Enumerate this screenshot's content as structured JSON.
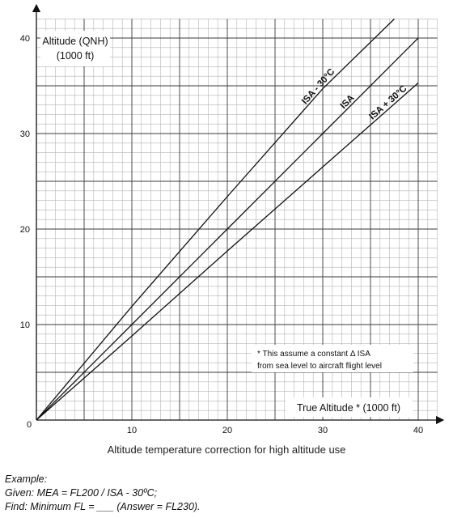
{
  "chart_data": {
    "type": "line",
    "x_axis": {
      "label": "True Altitude * (1000 ft)",
      "range": [
        0,
        42
      ],
      "ticks": [
        0,
        10,
        20,
        30,
        40
      ]
    },
    "y_axis": {
      "label_line1": "Altitude (QNH)",
      "label_line2": "(1000 ft)",
      "range": [
        0,
        42
      ],
      "ticks": [
        10,
        20,
        30,
        40
      ]
    },
    "grid": true,
    "grid_minor_step": 1,
    "grid_major_step": 5,
    "series": [
      {
        "name": "ISA - 30°C",
        "x": [
          0,
          10,
          20,
          30,
          37.5
        ],
        "y": [
          0,
          11.9,
          23.4,
          34.7,
          42
        ]
      },
      {
        "name": "ISA",
        "x": [
          0,
          10,
          20,
          30,
          40
        ],
        "y": [
          0,
          10,
          20,
          30,
          40
        ]
      },
      {
        "name": "ISA + 30°C",
        "x": [
          0,
          10,
          20,
          30,
          40
        ],
        "y": [
          0,
          8.8,
          17.7,
          26.5,
          35.3
        ]
      }
    ],
    "note_line1": "* This assume a constant Δ ISA",
    "note_line2": "from sea level to aircraft flight level",
    "origin_label": "0"
  },
  "caption": "Altitude temperature correction for high altitude use",
  "example": {
    "heading": "Example:",
    "given": "Given: MEA = FL200 / ISA - 30ºC;",
    "find": "Find: Minimum FL = ___ (Answer = FL230)."
  }
}
